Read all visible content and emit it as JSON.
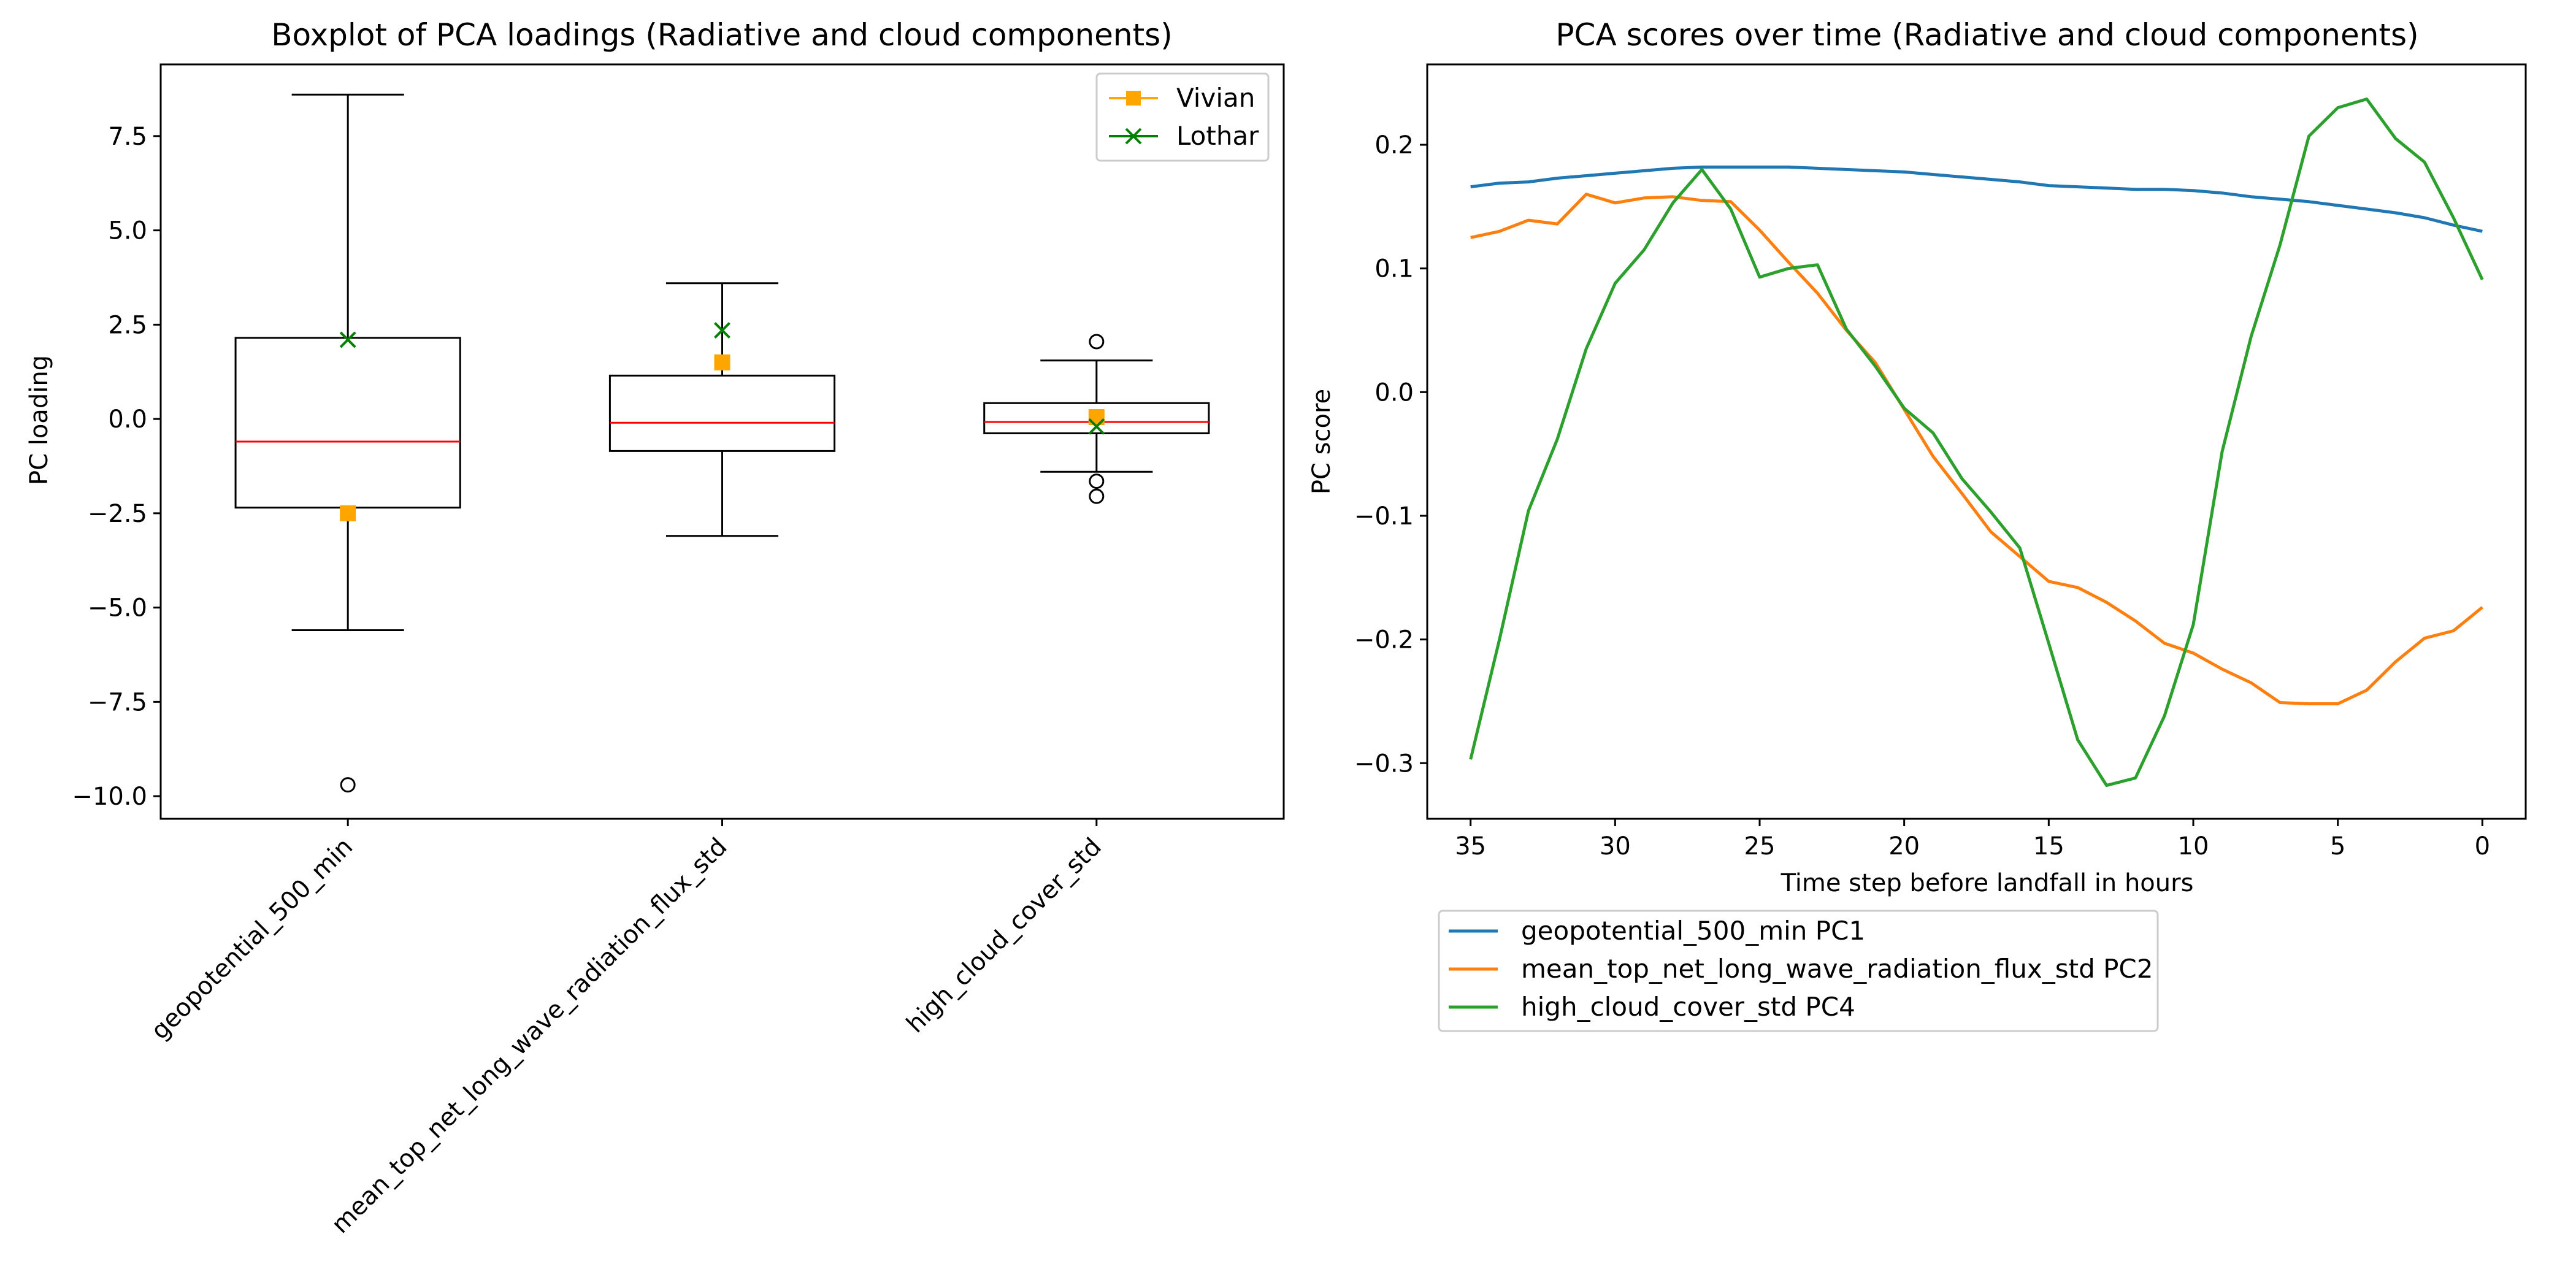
{
  "chart_data": [
    {
      "type": "box",
      "title": "Boxplot of PCA loadings (Radiative and cloud components)",
      "xlabel": "",
      "ylabel": "PC loading",
      "ylim": [
        -10.6,
        9.4
      ],
      "yticks": [
        -10.0,
        -7.5,
        -5.0,
        -2.5,
        0.0,
        2.5,
        5.0,
        7.5
      ],
      "ytick_labels": [
        "−10.0",
        "−7.5",
        "−5.0",
        "−2.5",
        "0.0",
        "2.5",
        "5.0",
        "7.5"
      ],
      "categories": [
        "geopotential_500_min",
        "mean_top_net_long_wave_radiation_flux_std",
        "high_cloud_cover_std"
      ],
      "boxes": [
        {
          "whislo": -5.6,
          "q1": -2.35,
          "med": -0.6,
          "q3": 2.15,
          "whishi": 8.6,
          "fliers": [
            -9.7
          ]
        },
        {
          "whislo": -3.1,
          "q1": -0.85,
          "med": -0.1,
          "q3": 1.15,
          "whishi": 3.6,
          "fliers": []
        },
        {
          "whislo": -1.4,
          "q1": -0.38,
          "med": -0.08,
          "q3": 0.42,
          "whishi": 1.55,
          "fliers": [
            2.05,
            -1.65,
            -2.05
          ]
        }
      ],
      "overlays": [
        {
          "name": "Vivian",
          "color": "#ffa500",
          "marker": "square",
          "values": [
            -2.5,
            1.5,
            0.05
          ]
        },
        {
          "name": "Lothar",
          "color": "#008000",
          "marker": "x",
          "values": [
            2.1,
            2.35,
            -0.2
          ]
        }
      ],
      "legend": "top-right",
      "grid": false
    },
    {
      "type": "line",
      "title": "PCA scores over time (Radiative and cloud components)",
      "xlabel": "Time step before landfall in hours",
      "ylabel": "PC score",
      "xlim": [
        36.5,
        -1.5
      ],
      "ylim": [
        -0.345,
        0.265
      ],
      "xticks": [
        35,
        30,
        25,
        20,
        15,
        10,
        5,
        0
      ],
      "yticks": [
        -0.3,
        -0.2,
        -0.1,
        0.0,
        0.1,
        0.2
      ],
      "ytick_labels": [
        "−0.3",
        "−0.2",
        "−0.1",
        "0.0",
        "0.1",
        "0.2"
      ],
      "x": [
        35,
        34,
        33,
        32,
        31,
        30,
        29,
        28,
        27,
        26,
        25,
        24,
        23,
        22,
        21,
        20,
        19,
        18,
        17,
        16,
        15,
        14,
        13,
        12,
        11,
        10,
        9,
        8,
        7,
        6,
        5,
        4,
        3,
        2,
        1,
        0
      ],
      "series": [
        {
          "name": "geopotential_500_min PC1",
          "color": "#1f77b4",
          "values": [
            0.166,
            0.169,
            0.17,
            0.173,
            0.175,
            0.177,
            0.179,
            0.181,
            0.182,
            0.182,
            0.182,
            0.182,
            0.181,
            0.18,
            0.179,
            0.178,
            0.176,
            0.174,
            0.172,
            0.17,
            0.167,
            0.166,
            0.165,
            0.164,
            0.164,
            0.163,
            0.161,
            0.158,
            0.156,
            0.154,
            0.151,
            0.148,
            0.145,
            0.141,
            0.135,
            0.13
          ]
        },
        {
          "name": "mean_top_net_long_wave_radiation_flux_std PC2",
          "color": "#ff7f0e",
          "values": [
            0.125,
            0.13,
            0.139,
            0.136,
            0.16,
            0.153,
            0.157,
            0.158,
            0.155,
            0.154,
            0.131,
            0.105,
            0.08,
            0.05,
            0.024,
            -0.014,
            -0.052,
            -0.082,
            -0.113,
            -0.133,
            -0.153,
            -0.158,
            -0.17,
            -0.185,
            -0.203,
            -0.211,
            -0.224,
            -0.235,
            -0.251,
            -0.252,
            -0.252,
            -0.241,
            -0.218,
            -0.199,
            -0.193,
            -0.174
          ]
        },
        {
          "name": "high_cloud_cover_std PC4",
          "color": "#2ca02c",
          "values": [
            -0.297,
            -0.2,
            -0.096,
            -0.038,
            0.035,
            0.088,
            0.115,
            0.153,
            0.18,
            0.148,
            0.093,
            0.1,
            0.103,
            0.051,
            0.021,
            -0.013,
            -0.033,
            -0.07,
            -0.097,
            -0.126,
            -0.203,
            -0.281,
            -0.318,
            -0.312,
            -0.262,
            -0.188,
            -0.048,
            0.045,
            0.119,
            0.207,
            0.23,
            0.237,
            0.205,
            0.186,
            0.141,
            0.091
          ]
        }
      ],
      "legend": "below-left",
      "grid": false
    }
  ]
}
